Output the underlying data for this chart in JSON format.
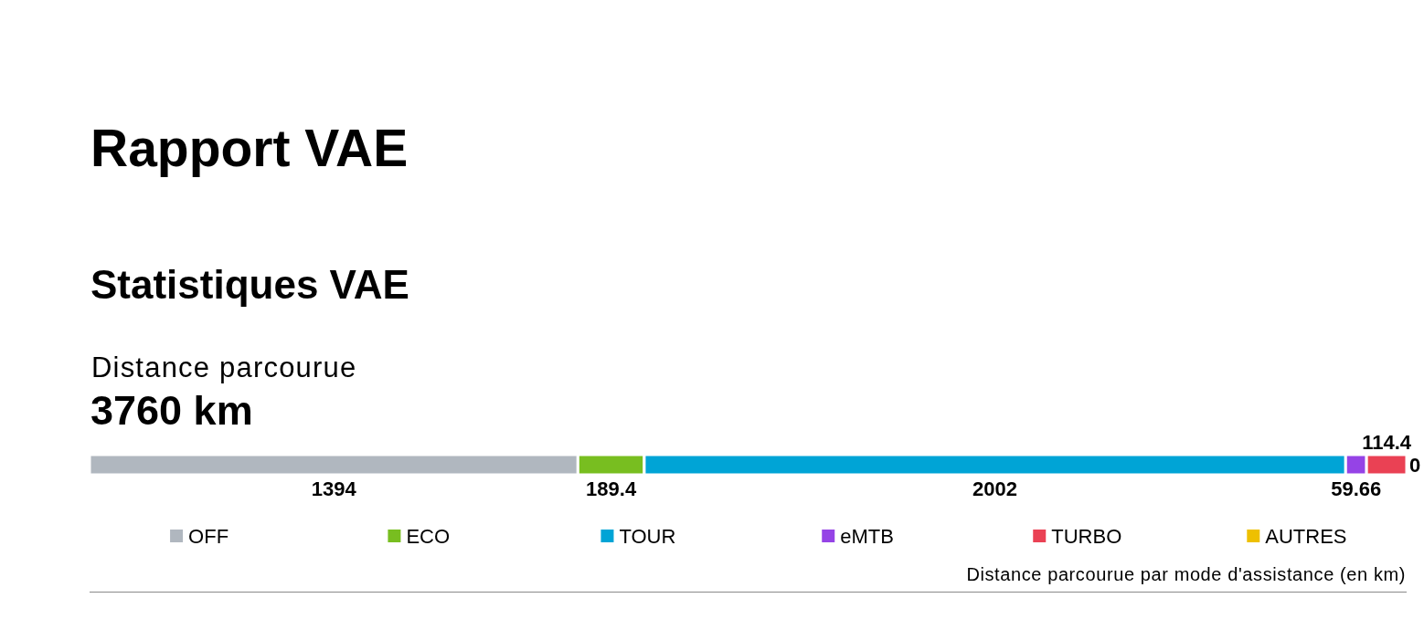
{
  "chart_data": {
    "type": "bar",
    "orientation": "horizontal",
    "stacked": true,
    "title": "Rapport VAE",
    "subtitle": "Statistiques VAE",
    "annotations": [
      "Distance parcourue",
      "3760 km",
      "Distance parcourue par mode d'assistance (en km)"
    ],
    "categories": [
      null
    ],
    "series": [
      {
        "name": "OFF",
        "color": "#b0b7bf",
        "values": [
          1394
        ]
      },
      {
        "name": "ECO",
        "color": "#78be20",
        "values": [
          189.4
        ]
      },
      {
        "name": "TOUR",
        "color": "#00a4d6",
        "values": [
          2002
        ]
      },
      {
        "name": "eMTB",
        "color": "#9543e6",
        "values": [
          59.66
        ]
      },
      {
        "name": "TURBO",
        "color": "#ea4154",
        "values": [
          114.4
        ]
      },
      {
        "name": "AUTRES",
        "color": "#eec000",
        "values": [
          0
        ]
      }
    ],
    "legend": "bottom",
    "data_labels": true
  }
}
